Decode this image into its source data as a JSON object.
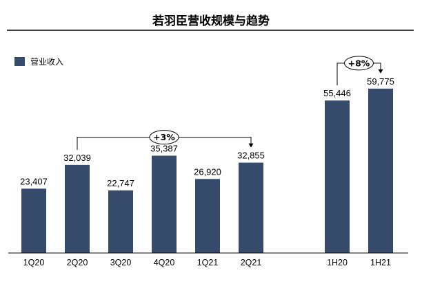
{
  "chart_data": {
    "type": "bar",
    "title": "若羽臣营收规模与趋势",
    "categories": [
      "1Q20",
      "2Q20",
      "3Q20",
      "4Q20",
      "1Q21",
      "2Q21",
      "1H20",
      "1H21"
    ],
    "series": [
      {
        "name": "营业收入",
        "values": [
          23407,
          32039,
          22747,
          35387,
          26920,
          32855,
          55446,
          59775
        ]
      }
    ],
    "value_labels": [
      "23,407",
      "32,039",
      "22,747",
      "35,387",
      "26,920",
      "32,855",
      "55,446",
      "59,775"
    ],
    "ylim": [
      0,
      70000
    ],
    "grid": false,
    "legend_position": "top-left",
    "bar_color": "#364a6b",
    "annotations": [
      {
        "label": "+3%",
        "from": "2Q20",
        "to": "2Q21"
      },
      {
        "label": "+8%",
        "from": "1H20",
        "to": "1H21"
      }
    ]
  }
}
